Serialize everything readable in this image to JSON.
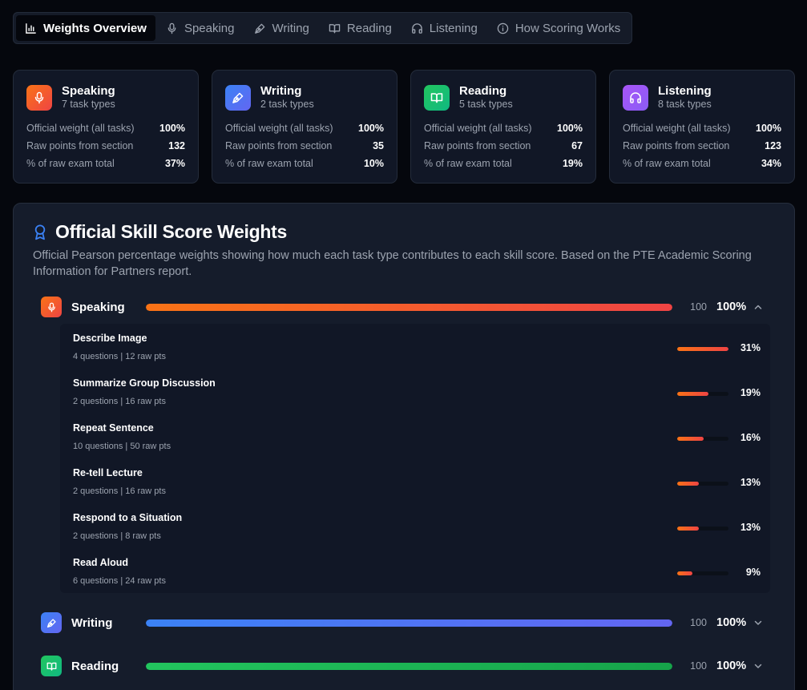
{
  "tabs": [
    {
      "label": "Weights Overview",
      "icon": "bar-chart-icon",
      "active": true
    },
    {
      "label": "Speaking",
      "icon": "mic-icon"
    },
    {
      "label": "Writing",
      "icon": "pen-icon"
    },
    {
      "label": "Reading",
      "icon": "book-icon"
    },
    {
      "label": "Listening",
      "icon": "headphones-icon"
    },
    {
      "label": "How Scoring Works",
      "icon": "info-icon"
    }
  ],
  "cards": [
    {
      "title": "Speaking",
      "subtitle": "7 task types",
      "color": "#f97316",
      "stats": [
        {
          "label": "Official weight (all tasks)",
          "value": "100%"
        },
        {
          "label": "Raw points from section",
          "value": "132"
        },
        {
          "label": "% of raw exam total",
          "value": "37%"
        }
      ]
    },
    {
      "title": "Writing",
      "subtitle": "2 task types",
      "color": "#3b82f6",
      "stats": [
        {
          "label": "Official weight (all tasks)",
          "value": "100%"
        },
        {
          "label": "Raw points from section",
          "value": "35"
        },
        {
          "label": "% of raw exam total",
          "value": "10%"
        }
      ]
    },
    {
      "title": "Reading",
      "subtitle": "5 task types",
      "color": "#22c55e",
      "stats": [
        {
          "label": "Official weight (all tasks)",
          "value": "100%"
        },
        {
          "label": "Raw points from section",
          "value": "67"
        },
        {
          "label": "% of raw exam total",
          "value": "19%"
        }
      ]
    },
    {
      "title": "Listening",
      "subtitle": "8 task types",
      "color": "#a855f7",
      "stats": [
        {
          "label": "Official weight (all tasks)",
          "value": "100%"
        },
        {
          "label": "Raw points from section",
          "value": "123"
        },
        {
          "label": "% of raw exam total",
          "value": "34%"
        }
      ]
    }
  ],
  "panel": {
    "title": "Official Skill Score Weights",
    "description": "Official Pearson percentage weights showing how much each task type contributes to each skill score. Based on the PTE Academic Scoring Information for Partners report."
  },
  "sections": [
    {
      "name": "Speaking",
      "raw": "100",
      "pct": "100%",
      "fill": 1.0,
      "expanded": true
    },
    {
      "name": "Writing",
      "raw": "100",
      "pct": "100%",
      "fill": 1.0,
      "expanded": false
    },
    {
      "name": "Reading",
      "raw": "100",
      "pct": "100%",
      "fill": 1.0,
      "expanded": false
    }
  ],
  "speaking_tasks": [
    {
      "name": "Describe Image",
      "meta": "4 questions | 12 raw pts",
      "pct": "31%",
      "weight": 31
    },
    {
      "name": "Summarize Group Discussion",
      "meta": "2 questions | 16 raw pts",
      "pct": "19%",
      "weight": 19
    },
    {
      "name": "Repeat Sentence",
      "meta": "10 questions | 50 raw pts",
      "pct": "16%",
      "weight": 16
    },
    {
      "name": "Re-tell Lecture",
      "meta": "2 questions | 16 raw pts",
      "pct": "13%",
      "weight": 13
    },
    {
      "name": "Respond to a Situation",
      "meta": "2 questions | 8 raw pts",
      "pct": "13%",
      "weight": 13
    },
    {
      "name": "Read Aloud",
      "meta": "6 questions | 24 raw pts",
      "pct": "9%",
      "weight": 9
    }
  ]
}
